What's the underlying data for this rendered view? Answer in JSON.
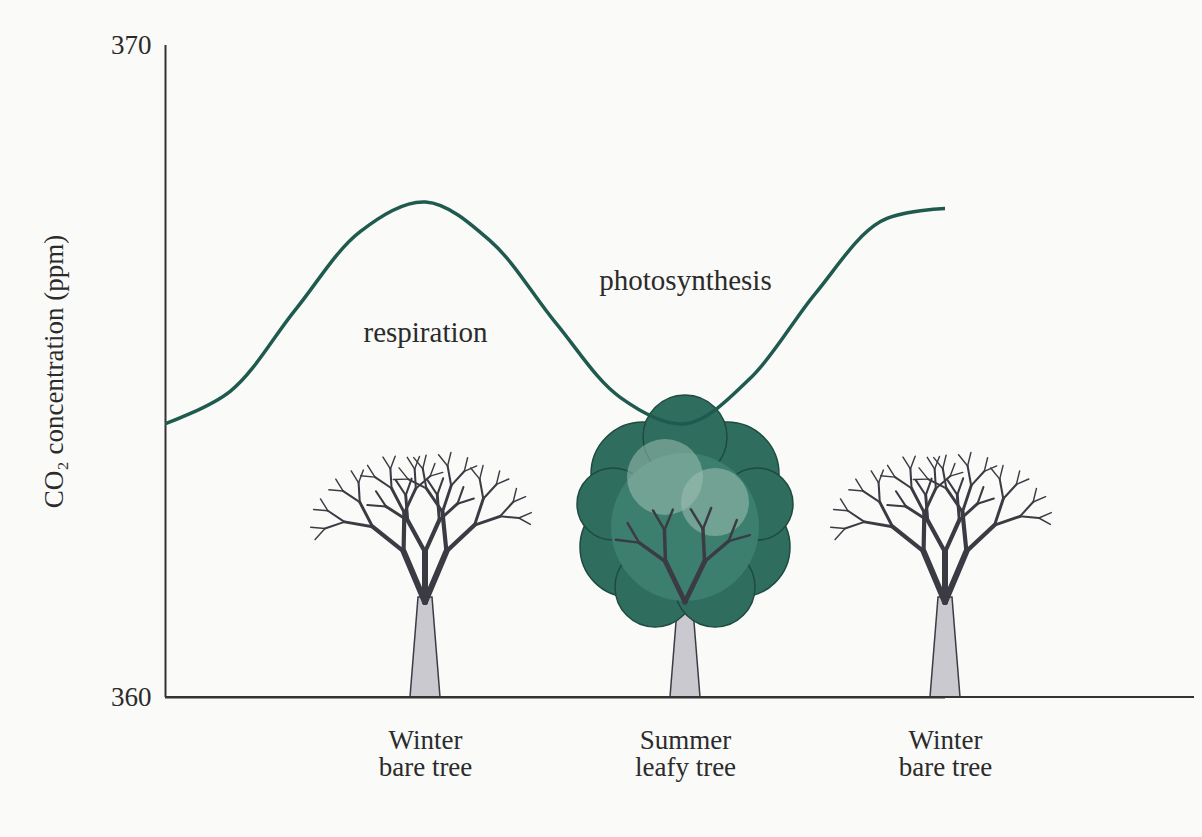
{
  "chart_data": {
    "type": "line",
    "categories": [
      null,
      null,
      null,
      null,
      "Winter\nbare tree",
      null,
      null,
      null,
      "Summer\nleafy tree",
      null,
      null,
      null,
      "Winter\nbare tree"
    ],
    "values": [
      364.2,
      364.7,
      365.95,
      367.15,
      367.6,
      367.0,
      365.75,
      364.6,
      364.2,
      364.9,
      366.2,
      367.3,
      367.5
    ],
    "color": "#1f5a4e",
    "ylabel": "CO₂ concentration (ppm)",
    "ylim": [
      360,
      370
    ],
    "yticks": [
      360,
      370
    ],
    "grid": false,
    "annotations": [
      {
        "text": "respiration",
        "x": 4,
        "y": 365.6
      },
      {
        "text": "photosynthesis",
        "x": 8,
        "y": 366.4
      }
    ]
  }
}
